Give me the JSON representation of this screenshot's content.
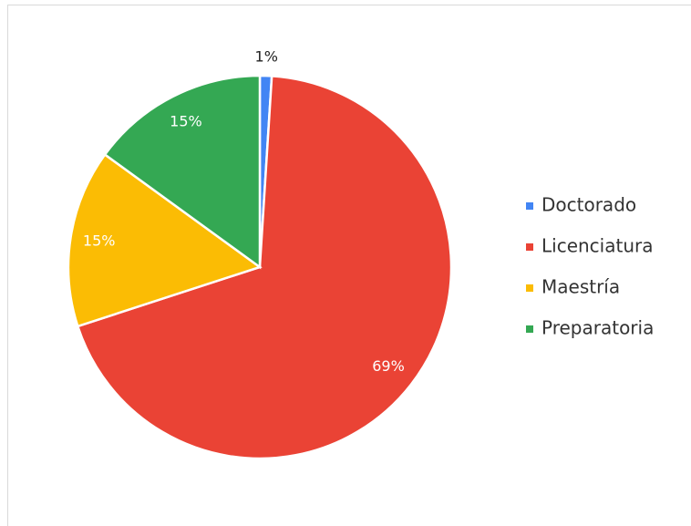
{
  "chart_data": {
    "type": "pie",
    "categories": [
      "Doctorado",
      "Licenciatura",
      "Maestría",
      "Preparatoria"
    ],
    "values": [
      1,
      69,
      15,
      15
    ],
    "value_labels": [
      "1%",
      "69%",
      "15%",
      "15%"
    ],
    "colors": [
      "#4285f4",
      "#ea4335",
      "#fbbc04",
      "#34a853"
    ],
    "legend": "right"
  }
}
